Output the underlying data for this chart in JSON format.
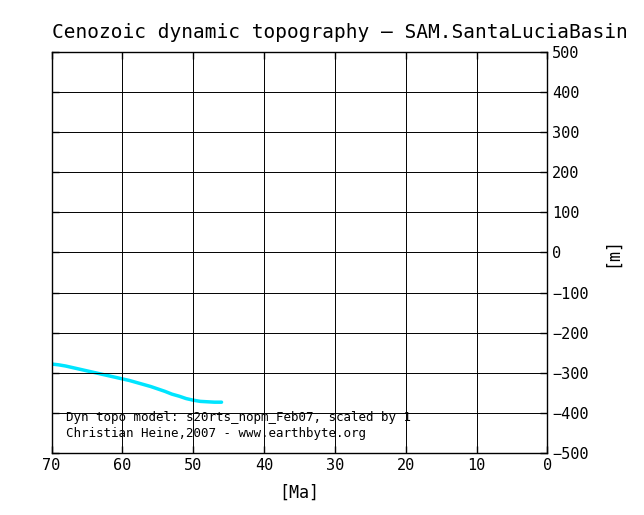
{
  "title": "Cenozoic dynamic topography – SAM.SantaLuciaBasin",
  "xlabel": "[Ma]",
  "ylabel": "[m]",
  "xlim": [
    70,
    0
  ],
  "ylim": [
    -500,
    500
  ],
  "xticks": [
    70,
    60,
    50,
    40,
    30,
    20,
    10,
    0
  ],
  "yticks": [
    -500,
    -400,
    -300,
    -200,
    -100,
    0,
    100,
    200,
    300,
    400,
    500
  ],
  "line_color": "#00e5ff",
  "line_width": 2.5,
  "annotation_line1": "Dyn topo model: s20rts_nopm_Feb07, scaled by 1",
  "annotation_line2": "Christian Heine,2007 - www.earthbyte.org",
  "curve_x": [
    70,
    69,
    68,
    67,
    66,
    65,
    64,
    63,
    62,
    61,
    60,
    59,
    58,
    57,
    56,
    55,
    54,
    53,
    52,
    51,
    50,
    49,
    48,
    47,
    46
  ],
  "curve_y": [
    -278,
    -280,
    -283,
    -287,
    -291,
    -295,
    -299,
    -303,
    -307,
    -311,
    -315,
    -319,
    -324,
    -329,
    -334,
    -340,
    -346,
    -353,
    -358,
    -364,
    -368,
    -371,
    -372,
    -373,
    -373
  ],
  "background_color": "#ffffff",
  "title_fontsize": 14,
  "tick_fontsize": 11,
  "annotation_fontsize": 9,
  "font_family": "monospace"
}
